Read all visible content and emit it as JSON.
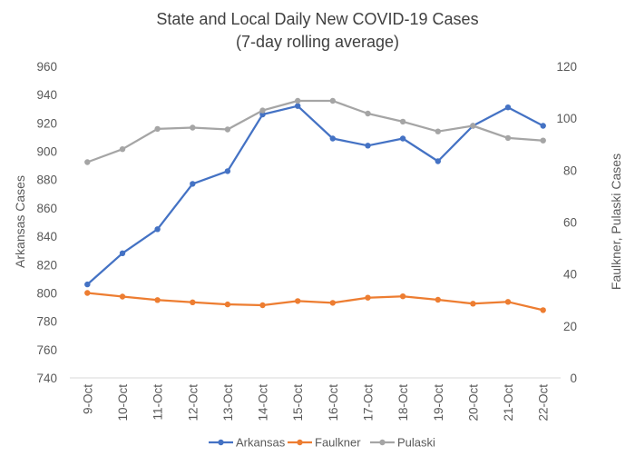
{
  "chart_data": {
    "type": "line",
    "title": "State and Local Daily New COVID-19 Cases",
    "subtitle": "(7-day rolling average)",
    "categories": [
      "9-Oct",
      "10-Oct",
      "11-Oct",
      "12-Oct",
      "13-Oct",
      "14-Oct",
      "15-Oct",
      "16-Oct",
      "17-Oct",
      "18-Oct",
      "19-Oct",
      "20-Oct",
      "21-Oct",
      "22-Oct"
    ],
    "ylabel": "Arkansas Cases",
    "y2label": "Faulkner, Pulaski Cases",
    "ylim": [
      740,
      960
    ],
    "yticks": [
      "740",
      "760",
      "780",
      "800",
      "820",
      "840",
      "860",
      "880",
      "900",
      "920",
      "940",
      "960"
    ],
    "y2lim": [
      0,
      120
    ],
    "y2ticks": [
      "0",
      "20",
      "40",
      "60",
      "80",
      "100",
      "120"
    ],
    "grid": false,
    "legend_position": "bottom",
    "series": [
      {
        "name": "Arkansas",
        "axis": "left",
        "color": "#4472C4",
        "values": [
          806,
          828,
          845,
          877,
          886,
          926,
          932,
          909,
          904,
          909,
          893,
          918,
          931,
          918
        ]
      },
      {
        "name": "Faulkner",
        "axis": "right",
        "color": "#ED7D31",
        "values": [
          32.7,
          31.3,
          30.0,
          29.1,
          28.3,
          28.0,
          29.6,
          28.9,
          30.9,
          31.4,
          30.1,
          28.6,
          29.3,
          26.1
        ]
      },
      {
        "name": "Pulaski",
        "axis": "right",
        "color": "#A5A5A5",
        "values": [
          83.1,
          88.1,
          95.9,
          96.4,
          95.7,
          103.0,
          106.7,
          106.7,
          101.8,
          98.7,
          94.9,
          97.1,
          92.4,
          91.4
        ]
      }
    ]
  }
}
